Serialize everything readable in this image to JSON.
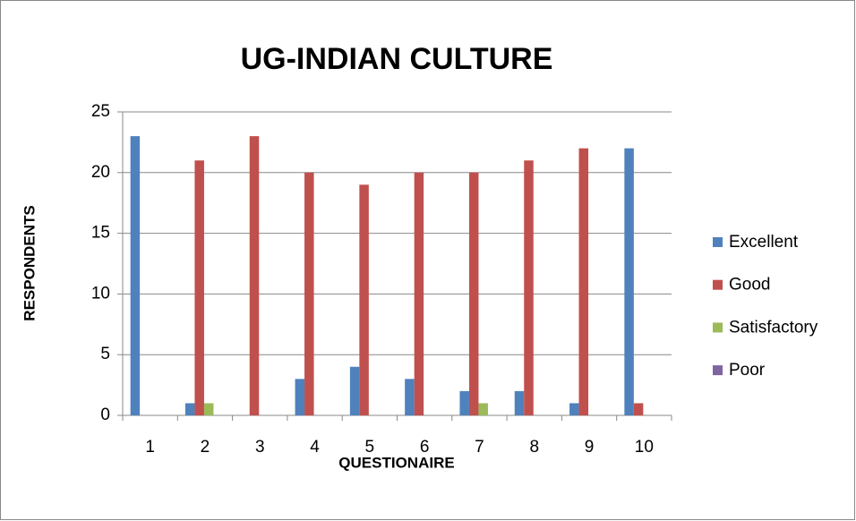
{
  "chart_data": {
    "type": "bar",
    "title": "UG-INDIAN CULTURE",
    "x_label": "QUESTIONAIRE",
    "y_label": "RESPONDENTS",
    "categories": [
      "1",
      "2",
      "3",
      "4",
      "5",
      "6",
      "7",
      "8",
      "9",
      "10"
    ],
    "series": [
      {
        "name": "Excellent",
        "color": "#4f81bd",
        "values": [
          23,
          1,
          0,
          3,
          4,
          3,
          2,
          2,
          1,
          22
        ]
      },
      {
        "name": "Good",
        "color": "#c0504d",
        "values": [
          0,
          21,
          23,
          20,
          19,
          20,
          20,
          21,
          22,
          1
        ]
      },
      {
        "name": "Satisfactory",
        "color": "#9bbb59",
        "values": [
          0,
          1,
          0,
          0,
          0,
          0,
          1,
          0,
          0,
          0
        ]
      },
      {
        "name": "Poor",
        "color": "#8064a2",
        "values": [
          0,
          0,
          0,
          0,
          0,
          0,
          0,
          0,
          0,
          0
        ]
      }
    ],
    "ylim": [
      0,
      25
    ],
    "yticks": [
      0,
      5,
      10,
      15,
      20,
      25
    ],
    "grid": true,
    "legend": "right"
  }
}
